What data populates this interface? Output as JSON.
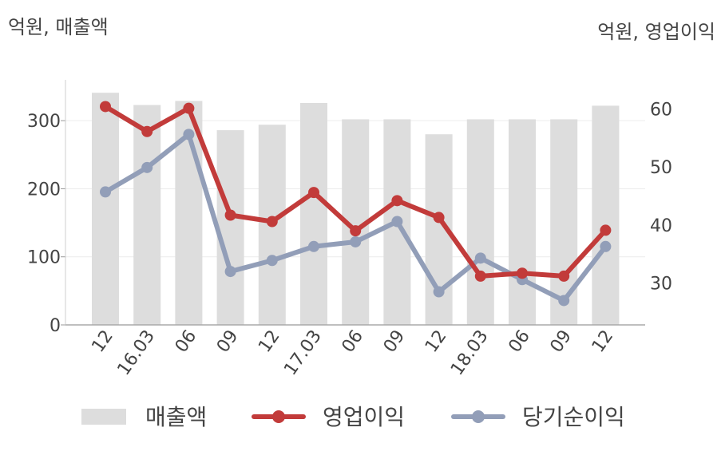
{
  "units": {
    "left": "억원, 매출액",
    "right": "억원, 영업이익"
  },
  "chart_data": {
    "type": "bar",
    "categories": [
      "12",
      "16.03",
      "06",
      "09",
      "12",
      "17.03",
      "06",
      "09",
      "12",
      "18.03",
      "06",
      "09",
      "12"
    ],
    "y_left": {
      "ticks": [
        0,
        100,
        200,
        300
      ],
      "ylim": [
        0,
        360
      ]
    },
    "y_right": {
      "ticks": [
        30,
        40,
        50,
        60
      ],
      "ylim": [
        22.8,
        65
      ]
    },
    "grid": true,
    "legend_position": "bottom",
    "series": [
      {
        "name": "매출액",
        "kind": "bar",
        "axis": "left",
        "color": "#dddddd",
        "values": [
          341,
          323,
          329,
          286,
          294,
          326,
          302,
          302,
          280,
          302,
          302,
          302,
          322
        ]
      },
      {
        "name": "영업이익",
        "kind": "line",
        "axis": "right",
        "color": "#c23b3a",
        "values": [
          60.4,
          56.1,
          60.1,
          41.7,
          40.6,
          45.6,
          39.0,
          44.2,
          41.3,
          31.2,
          31.7,
          31.2,
          39.1
        ]
      },
      {
        "name": "당기순이익",
        "kind": "line",
        "axis": "right",
        "color": "#929eb8",
        "values": [
          45.7,
          49.9,
          55.6,
          32.0,
          33.9,
          36.3,
          37.1,
          40.6,
          28.5,
          34.3,
          30.6,
          27.0,
          36.3
        ]
      }
    ]
  }
}
